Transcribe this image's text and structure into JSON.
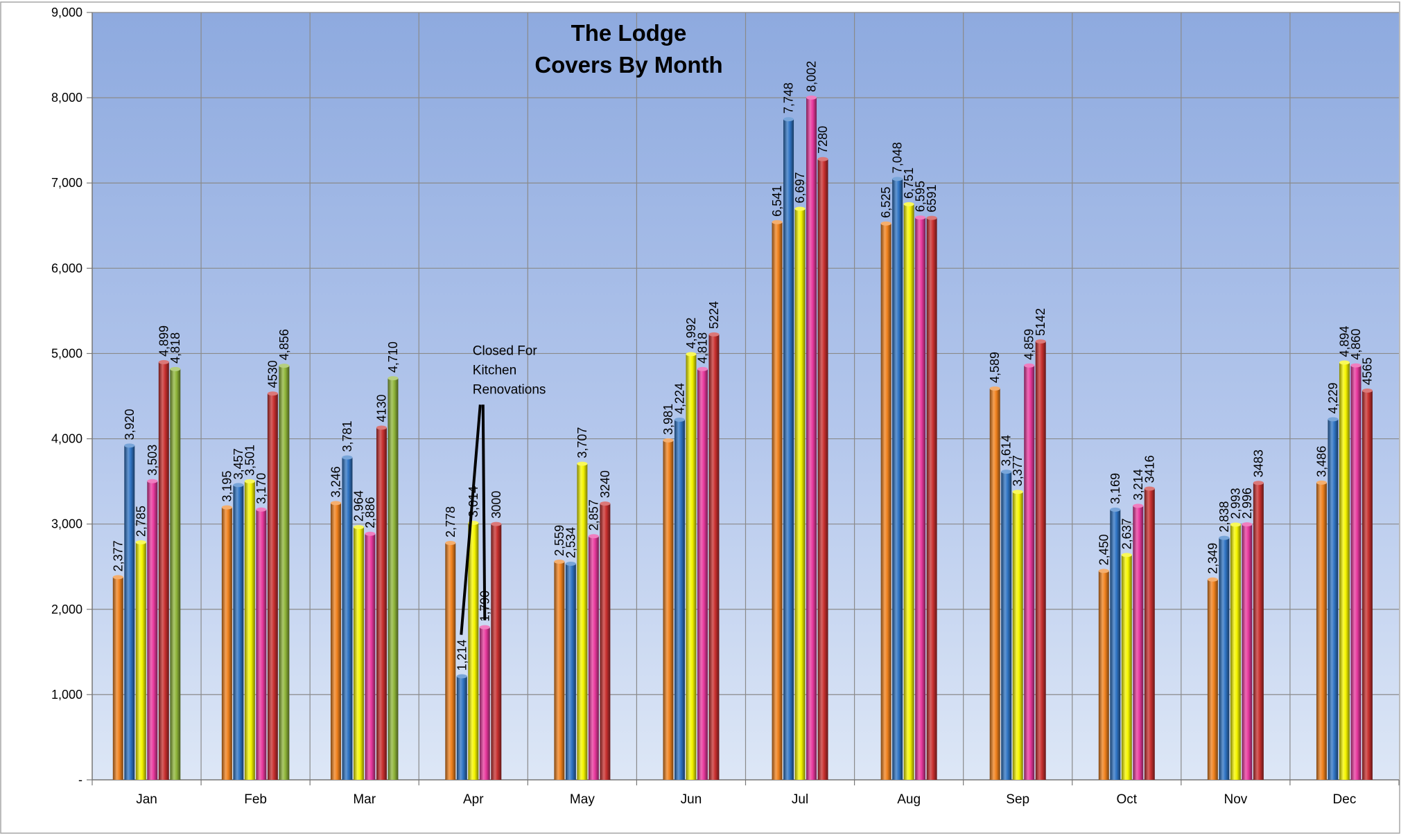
{
  "chart_data": {
    "type": "bar",
    "title": "The Lodge",
    "subtitle": "Covers By Month",
    "categories": [
      "Jan",
      "Feb",
      "Mar",
      "Apr",
      "May",
      "Jun",
      "Jul",
      "Aug",
      "Sep",
      "Oct",
      "Nov",
      "Dec"
    ],
    "ylim": [
      0,
      9000
    ],
    "yticks": [
      0,
      1000,
      2000,
      3000,
      4000,
      5000,
      6000,
      7000,
      8000,
      9000
    ],
    "ytick_labels": [
      "-",
      "1,000",
      "2,000",
      "3,000",
      "4,000",
      "5,000",
      "6,000",
      "7,000",
      "8,000",
      "9,000"
    ],
    "grid": true,
    "legend": "none",
    "series": [
      {
        "color": "#f0821e",
        "values": [
          2377,
          3195,
          3246,
          2778,
          2559,
          3981,
          6541,
          6525,
          4589,
          2450,
          2349,
          3486
        ],
        "labels": [
          "2,377",
          "3,195",
          "3,246",
          "2,778",
          "2,559",
          "3,981",
          "6,541",
          "6,525",
          "4,589",
          "2,450",
          "2,349",
          "3,486"
        ]
      },
      {
        "color": "#2f74c4",
        "values": [
          3920,
          3457,
          3781,
          1214,
          2534,
          4224,
          7748,
          7048,
          3614,
          3169,
          2838,
          4229
        ],
        "labels": [
          "3,920",
          "3,457",
          "3,781",
          "1,214",
          "2,534",
          "4,224",
          "7,748",
          "7,048",
          "3,614",
          "3,169",
          "2,838",
          "4,229"
        ]
      },
      {
        "color": "#f5f500",
        "values": [
          2785,
          3501,
          2964,
          3014,
          3707,
          4992,
          6697,
          6751,
          3377,
          2637,
          2993,
          4894
        ],
        "labels": [
          "2,785",
          "3,501",
          "2,964",
          "3,014",
          "3,707",
          "4,992",
          "6,697",
          "6,751",
          "3,377",
          "2,637",
          "2,993",
          "4,894"
        ]
      },
      {
        "color": "#e8399e",
        "values": [
          3503,
          3170,
          2886,
          1790,
          2857,
          4818,
          8002,
          6595,
          4859,
          3214,
          2996,
          4860
        ],
        "labels": [
          "3,503",
          "3,170",
          "2,886",
          "1,790",
          "2,857",
          "4,818",
          "8,002",
          "6,595",
          "4,859",
          "3,214",
          "2,996",
          "4,860"
        ]
      },
      {
        "color": "#c8302f",
        "values": [
          4899,
          4530,
          4130,
          3000,
          3240,
          5224,
          7280,
          6591,
          5142,
          3416,
          3483,
          4565
        ],
        "labels": [
          "4,899",
          "4530",
          "4130",
          "3000",
          "3240",
          "5224",
          "7280",
          "6591",
          "5142",
          "3416",
          "3483",
          "4565"
        ]
      },
      {
        "color": "#8fb53a",
        "values": [
          4818,
          4856,
          4710,
          null,
          null,
          null,
          null,
          null,
          null,
          null,
          null,
          null
        ],
        "labels": [
          "4,818",
          "4,856",
          "4,710",
          "",
          "",
          "",
          "",
          "",
          "",
          "",
          "",
          ""
        ]
      }
    ],
    "annotation": {
      "lines": [
        "Closed For",
        "Kitchen",
        "Renovations"
      ],
      "category": "Apr"
    }
  }
}
